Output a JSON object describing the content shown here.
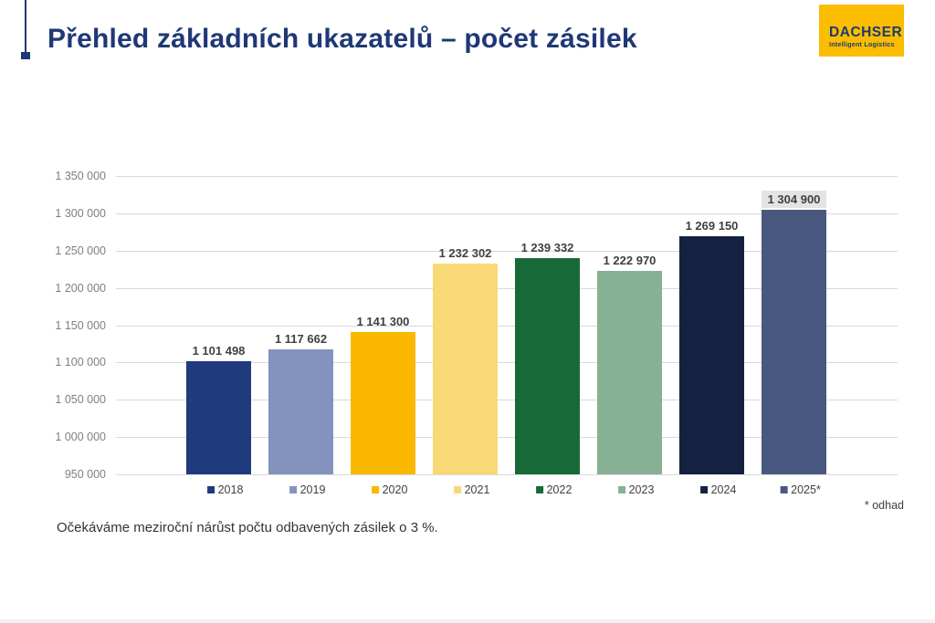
{
  "header": {
    "title": "Přehled základních ukazatelů – počet zásilek",
    "logo": {
      "brand": "DACHSER",
      "tagline": "Intelligent Logistics"
    }
  },
  "footer": {
    "summary": "Očekáváme meziroční nárůst počtu odbavených zásilek o 3 %.",
    "estimate_note": "* odhad"
  },
  "colors": {
    "title_blue": "#1f3876",
    "logo_yellow": "#fbbd00",
    "logo_text": "#1e3a6e",
    "gridline": "#d9d9d9",
    "axis_text": "#7f7f7f",
    "label_text": "#404040",
    "highlight_label_bg": "#e3e3e3"
  },
  "chart_data": {
    "type": "bar",
    "title": "",
    "xlabel": "",
    "ylabel": "",
    "categories": [
      "2018",
      "2019",
      "2020",
      "2021",
      "2022",
      "2023",
      "2024",
      "2025*"
    ],
    "values": [
      1101498,
      1117662,
      1141300,
      1232302,
      1239332,
      1222970,
      1269150,
      1304900
    ],
    "value_labels": [
      "1 101 498",
      "1 117 662",
      "1 141 300",
      "1 232 302",
      "1 239 332",
      "1 222 970",
      "1 269 150",
      "1 304 900"
    ],
    "bar_colors": [
      "#1f3a7d",
      "#8393be",
      "#fbb800",
      "#f9d876",
      "#176a38",
      "#87b094",
      "#142140",
      "#49587f"
    ],
    "highlighted_label_index": 7,
    "ylim": [
      950000,
      1350000
    ],
    "ytick_step": 50000,
    "ytick_labels": [
      "950 000",
      "1 000 000",
      "1 050 000",
      "1 100 000",
      "1 150 000",
      "1 200 000",
      "1 250 000",
      "1 300 000",
      "1 350 000"
    ],
    "grid": true,
    "legend_position": "bottom"
  }
}
